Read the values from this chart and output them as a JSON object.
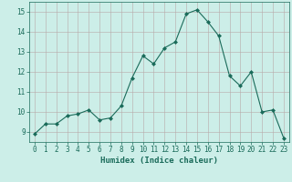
{
  "x": [
    0,
    1,
    2,
    3,
    4,
    5,
    6,
    7,
    8,
    9,
    10,
    11,
    12,
    13,
    14,
    15,
    16,
    17,
    18,
    19,
    20,
    21,
    22,
    23
  ],
  "y": [
    8.9,
    9.4,
    9.4,
    9.8,
    9.9,
    10.1,
    9.6,
    9.7,
    10.3,
    11.7,
    12.8,
    12.4,
    13.2,
    13.5,
    14.9,
    15.1,
    14.5,
    13.8,
    11.8,
    11.3,
    12.0,
    10.0,
    10.1,
    8.7
  ],
  "line_color": "#1a6b5a",
  "marker": "D",
  "marker_size": 2.0,
  "bg_color": "#cceee8",
  "grid_color": "#b8a8a8",
  "xlabel": "Humidex (Indice chaleur)",
  "ylim": [
    8.5,
    15.5
  ],
  "xlim": [
    -0.5,
    23.5
  ],
  "yticks": [
    9,
    10,
    11,
    12,
    13,
    14,
    15
  ],
  "xticks": [
    0,
    1,
    2,
    3,
    4,
    5,
    6,
    7,
    8,
    9,
    10,
    11,
    12,
    13,
    14,
    15,
    16,
    17,
    18,
    19,
    20,
    21,
    22,
    23
  ],
  "tick_fontsize": 5.5,
  "xlabel_fontsize": 6.5,
  "line_width": 0.8
}
